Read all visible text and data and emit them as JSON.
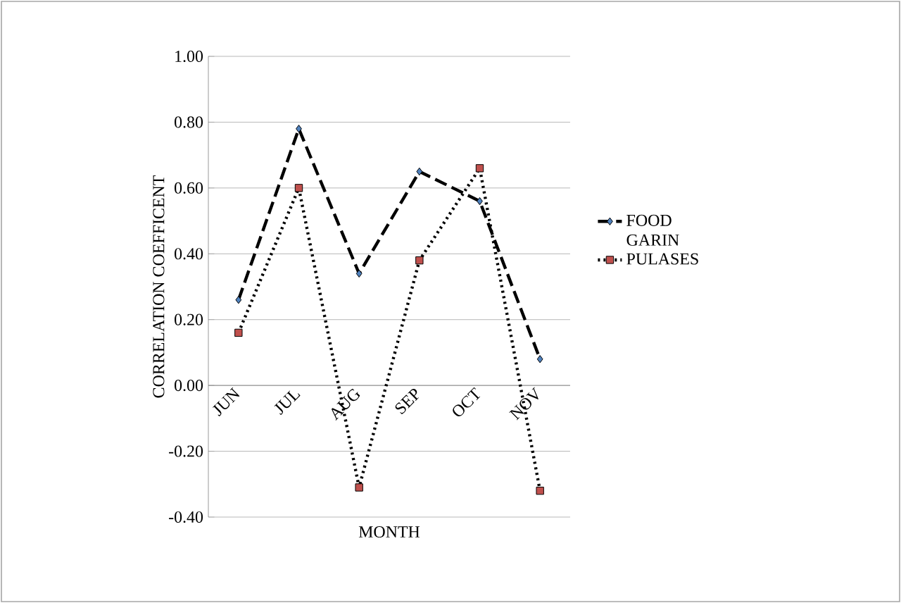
{
  "chart_data": {
    "type": "line",
    "xlabel": "MONTH",
    "ylabel": "CORRELATION COEFFICENT",
    "categories": [
      "JUN",
      "JUL",
      "AUG",
      "SEP",
      "OCT",
      "NOV"
    ],
    "series": [
      {
        "name": "FOOD GARIN",
        "color": "#4f81bd",
        "marker": "diamond",
        "line_style": "dashed",
        "values": [
          0.26,
          0.78,
          0.34,
          0.65,
          0.56,
          0.08
        ]
      },
      {
        "name": "PULASES",
        "color": "#c0504d",
        "marker": "square",
        "line_style": "dotted",
        "values": [
          0.16,
          0.6,
          -0.31,
          0.38,
          0.66,
          -0.32
        ]
      }
    ],
    "ylim": [
      -0.4,
      1.0
    ],
    "yticks": [
      {
        "value": -0.4,
        "label": "-0.40"
      },
      {
        "value": -0.2,
        "label": "-0.20"
      },
      {
        "value": 0,
        "label": "0.00"
      },
      {
        "value": 0.2,
        "label": "0.20"
      },
      {
        "value": 0.4,
        "label": "0.40"
      },
      {
        "value": 0.6,
        "label": "0.60"
      },
      {
        "value": 0.8,
        "label": "0.80"
      },
      {
        "value": 1.0,
        "label": "1.00"
      }
    ],
    "grid": "y",
    "legend": "right"
  }
}
